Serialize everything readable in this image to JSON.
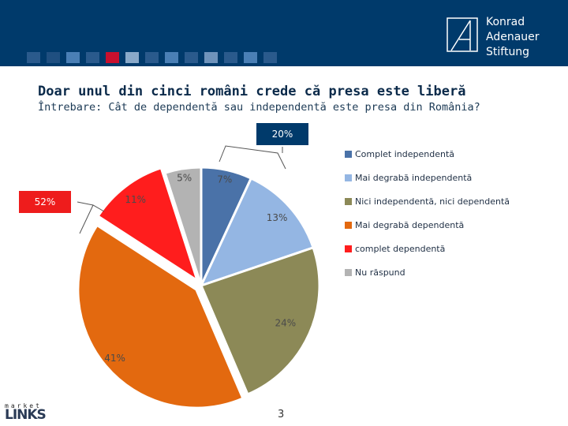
{
  "header": {
    "brand_lines": [
      "Konrad",
      "Adenauer",
      "Stiftung"
    ],
    "stripe_colors": [
      "#2a5a8c",
      "#1f4f80",
      "#4a7fb5",
      "#2a5a8c",
      "#c8102e",
      "#8aa9c9",
      "#2a5a8c",
      "#4a7fb5",
      "#2a5a8c",
      "#6f93bb",
      "#2a5a8c",
      "#4a7fb5",
      "#2a5a8c"
    ]
  },
  "slide": {
    "title": "Doar unul din cinci români crede că presa este liberă",
    "subtitle": "Întrebare: Cât de dependentă sau independentă este presa din România?",
    "page_number": "3"
  },
  "chart_data": {
    "type": "pie",
    "title": "Doar unul din cinci români crede că presa este liberă",
    "categories": [
      "Complet independentă",
      "Mai degrabă independentă",
      "Nici independentă, nici dependentă",
      "Mai degrabă dependentă",
      "complet dependentă",
      "Nu răspund"
    ],
    "values": [
      7,
      13,
      24,
      41,
      11,
      5
    ],
    "value_labels": [
      "7%",
      "13%",
      "24%",
      "41%",
      "11%",
      "5%"
    ],
    "colors": [
      "#4a72a8",
      "#94b6e3",
      "#8c8957",
      "#e3690f",
      "#ff1d1d",
      "#b3b3b3"
    ],
    "exploded": [
      false,
      false,
      false,
      true,
      true,
      false
    ],
    "groups": [
      {
        "label": "20%",
        "members": [
          0,
          1
        ],
        "color": "#003a6b"
      },
      {
        "label": "52%",
        "members": [
          3,
          4
        ],
        "color": "#ee1c1c"
      }
    ],
    "legend_position": "right"
  },
  "footer": {
    "brand_top": "market",
    "brand_bottom": "LINKS"
  }
}
